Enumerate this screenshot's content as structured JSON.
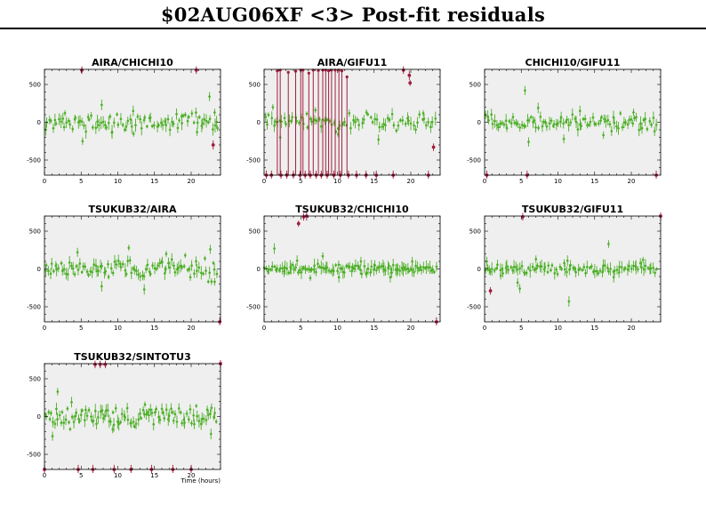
{
  "title": "$02AUG06XF <3> Post-fit residuals",
  "colors": {
    "ok": "#4caf26",
    "flagged": "#a01c3c",
    "panel_bg": "#efefef"
  },
  "chart_data": [
    {
      "type": "scatter",
      "title": "AIRA/CHICHI10",
      "xlim": [
        0,
        24
      ],
      "ylim": [
        -700,
        700
      ],
      "xticks": [
        0,
        5,
        10,
        15,
        20
      ],
      "yticks": [
        -500,
        0,
        500
      ],
      "xlabel": "",
      "grid": false,
      "series": [
        {
          "status": "ok",
          "seed": 11,
          "n": 90,
          "sigma": 70,
          "x_range": [
            0,
            23.6
          ],
          "points": [
            [
              2.8,
              120
            ],
            [
              5.2,
              -250
            ],
            [
              7.8,
              230
            ],
            [
              9.2,
              -140
            ],
            [
              12.1,
              150
            ],
            [
              18.7,
              80
            ],
            [
              20.8,
              -130
            ],
            [
              22.5,
              340
            ],
            [
              23.2,
              130
            ],
            [
              23.6,
              -80
            ]
          ]
        },
        {
          "status": "flagged",
          "points": [
            [
              5.1,
              690
            ],
            [
              20.7,
              690
            ],
            [
              23.0,
              -300
            ]
          ]
        }
      ]
    },
    {
      "type": "scatter",
      "title": "AIRA/GIFU11",
      "xlim": [
        0,
        24
      ],
      "ylim": [
        -700,
        700
      ],
      "xticks": [
        0,
        5,
        10,
        15,
        20
      ],
      "yticks": [
        -500,
        0,
        500
      ],
      "xlabel": "",
      "grid": false,
      "series": [
        {
          "status": "ok",
          "seed": 23,
          "n": 80,
          "sigma": 70,
          "x_range": [
            0,
            23.5
          ],
          "points": [
            [
              1.2,
              200
            ],
            [
              2.2,
              -200
            ],
            [
              7.0,
              160
            ],
            [
              10.1,
              -160
            ],
            [
              15.6,
              -230
            ],
            [
              21.7,
              120
            ]
          ]
        },
        {
          "status": "flagged",
          "style": "spike",
          "points": [
            [
              1.8,
              680
            ],
            [
              2.2,
              690
            ],
            [
              3.3,
              660
            ],
            [
              4.3,
              675
            ],
            [
              5.0,
              690
            ],
            [
              5.3,
              690
            ],
            [
              6.1,
              650
            ],
            [
              6.7,
              690
            ],
            [
              7.4,
              685
            ],
            [
              8.0,
              690
            ],
            [
              8.4,
              690
            ],
            [
              8.8,
              680
            ],
            [
              9.2,
              690
            ],
            [
              9.7,
              690
            ],
            [
              10.2,
              690
            ],
            [
              10.6,
              680
            ],
            [
              11.3,
              600
            ]
          ]
        },
        {
          "status": "flagged",
          "points": [
            [
              0.3,
              -700
            ],
            [
              1.0,
              -700
            ],
            [
              2.3,
              -700
            ],
            [
              3.1,
              -700
            ],
            [
              4.0,
              -700
            ],
            [
              4.9,
              -700
            ],
            [
              5.6,
              -700
            ],
            [
              6.3,
              -700
            ],
            [
              7.1,
              -700
            ],
            [
              7.8,
              -700
            ],
            [
              8.6,
              -700
            ],
            [
              9.5,
              -700
            ],
            [
              10.4,
              -700
            ],
            [
              11.5,
              -700
            ],
            [
              12.6,
              -700
            ],
            [
              13.9,
              -700
            ],
            [
              15.3,
              -700
            ],
            [
              17.6,
              -700
            ],
            [
              19.0,
              690
            ],
            [
              19.8,
              620
            ],
            [
              19.9,
              520
            ],
            [
              22.4,
              -700
            ],
            [
              23.1,
              -330
            ]
          ]
        }
      ]
    },
    {
      "type": "scatter",
      "title": "CHICHI10/GIFU11",
      "xlim": [
        0,
        24
      ],
      "ylim": [
        -700,
        700
      ],
      "xticks": [
        0,
        5,
        10,
        15,
        20
      ],
      "yticks": [
        -500,
        0,
        500
      ],
      "xlabel": "",
      "grid": false,
      "series": [
        {
          "status": "ok",
          "seed": 37,
          "n": 95,
          "sigma": 60,
          "x_range": [
            0,
            23.6
          ],
          "points": [
            [
              5.5,
              420
            ],
            [
              6.0,
              -260
            ],
            [
              7.3,
              190
            ],
            [
              10.8,
              -220
            ],
            [
              13.0,
              150
            ],
            [
              16.2,
              -170
            ],
            [
              20.3,
              130
            ]
          ]
        },
        {
          "status": "flagged",
          "points": [
            [
              0.3,
              -700
            ],
            [
              5.8,
              -700
            ],
            [
              23.4,
              -700
            ]
          ]
        }
      ]
    },
    {
      "type": "scatter",
      "title": "TSUKUB32/AIRA",
      "xlim": [
        0,
        24
      ],
      "ylim": [
        -700,
        700
      ],
      "xticks": [
        0,
        5,
        10,
        15,
        20
      ],
      "yticks": [
        -500,
        0,
        500
      ],
      "xlabel": "",
      "grid": false,
      "series": [
        {
          "status": "ok",
          "seed": 41,
          "n": 100,
          "sigma": 80,
          "x_range": [
            0,
            23.6
          ],
          "points": [
            [
              4.5,
              220
            ],
            [
              7.8,
              -230
            ],
            [
              11.5,
              280
            ],
            [
              13.6,
              -270
            ],
            [
              16.6,
              200
            ],
            [
              22.6,
              260
            ],
            [
              23.2,
              -170
            ]
          ]
        },
        {
          "status": "flagged",
          "points": [
            [
              23.9,
              -700
            ]
          ]
        }
      ]
    },
    {
      "type": "scatter",
      "title": "TSUKUB32/CHICHI10",
      "xlim": [
        0,
        24
      ],
      "ylim": [
        -700,
        700
      ],
      "xticks": [
        0,
        5,
        10,
        15,
        20
      ],
      "yticks": [
        -500,
        0,
        500
      ],
      "xlabel": "",
      "grid": false,
      "series": [
        {
          "status": "ok",
          "seed": 53,
          "n": 110,
          "sigma": 35,
          "x_range": [
            0,
            23.6
          ],
          "points": [
            [
              1.4,
              270
            ],
            [
              4.5,
              110
            ],
            [
              6.3,
              -120
            ],
            [
              8.0,
              170
            ],
            [
              10.2,
              -110
            ],
            [
              13.2,
              100
            ],
            [
              17.2,
              -110
            ],
            [
              20.2,
              100
            ]
          ]
        },
        {
          "status": "flagged",
          "points": [
            [
              4.7,
              600
            ],
            [
              5.4,
              690
            ],
            [
              5.8,
              700
            ],
            [
              23.5,
              -700
            ]
          ]
        }
      ]
    },
    {
      "type": "scatter",
      "title": "TSUKUB32/GIFU11",
      "xlim": [
        0,
        24
      ],
      "ylim": [
        -700,
        700
      ],
      "xticks": [
        0,
        5,
        10,
        15,
        20
      ],
      "yticks": [
        -500,
        0,
        500
      ],
      "xlabel": "",
      "grid": false,
      "series": [
        {
          "status": "ok",
          "seed": 67,
          "n": 95,
          "sigma": 40,
          "x_range": [
            0,
            23.6
          ],
          "points": [
            [
              0.3,
              100
            ],
            [
              2.2,
              -90
            ],
            [
              4.5,
              -180
            ],
            [
              4.8,
              -260
            ],
            [
              7.0,
              130
            ],
            [
              11.5,
              -430
            ],
            [
              11.3,
              110
            ],
            [
              16.9,
              330
            ],
            [
              17.6,
              -110
            ],
            [
              21.6,
              120
            ]
          ]
        },
        {
          "status": "flagged",
          "points": [
            [
              0.8,
              -290
            ],
            [
              5.2,
              690
            ],
            [
              24.0,
              700
            ]
          ]
        }
      ]
    },
    {
      "type": "scatter",
      "title": "TSUKUB32/SINTOTU3",
      "xlim": [
        0,
        24
      ],
      "ylim": [
        -700,
        700
      ],
      "xticks": [
        0,
        5,
        10,
        15,
        20
      ],
      "yticks": [
        -500,
        0,
        500
      ],
      "xlabel": "Time (hours)",
      "grid": false,
      "series": [
        {
          "status": "ok",
          "seed": 79,
          "n": 110,
          "sigma": 90,
          "x_range": [
            0,
            23.6
          ],
          "points": [
            [
              1.1,
              -260
            ],
            [
              1.8,
              330
            ],
            [
              3.7,
              190
            ],
            [
              9.3,
              -170
            ],
            [
              13.7,
              160
            ],
            [
              22.7,
              -230
            ]
          ]
        },
        {
          "status": "flagged",
          "points": [
            [
              0.0,
              -700
            ],
            [
              6.9,
              690
            ],
            [
              7.6,
              690
            ],
            [
              8.3,
              690
            ],
            [
              4.6,
              -700
            ],
            [
              6.6,
              -700
            ],
            [
              9.5,
              -700
            ],
            [
              11.8,
              -700
            ],
            [
              14.6,
              -700
            ],
            [
              17.5,
              -700
            ],
            [
              20.0,
              -700
            ],
            [
              24.0,
              700
            ]
          ]
        }
      ]
    }
  ]
}
